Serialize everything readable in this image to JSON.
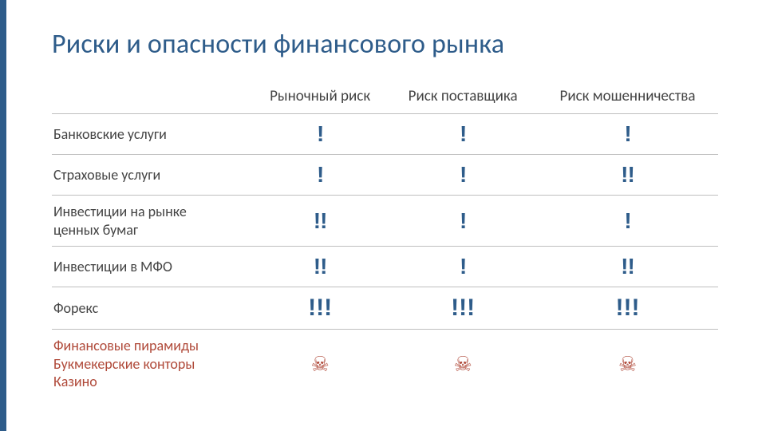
{
  "colors": {
    "accent": "#2e5c8a",
    "text": "#444444",
    "danger": "#b04a3a",
    "border": "#bfbfbf",
    "bg": "#ffffff"
  },
  "title": "Риски и опасности финансового рынка",
  "table": {
    "headers": [
      "",
      "Рыночный риск",
      "Риск поставщика",
      "Риск мошенничества"
    ],
    "rows": [
      {
        "label": "Банковские услуги",
        "marks": [
          "!",
          "!",
          "!"
        ],
        "danger": false
      },
      {
        "label": "Страховые услуги",
        "marks": [
          "!",
          "!",
          "!!"
        ],
        "danger": false
      },
      {
        "label": "Инвестиции на рынке\nценных бумаг",
        "marks": [
          "!!",
          "!",
          "!"
        ],
        "danger": false
      },
      {
        "label": "Инвестиции в МФО",
        "marks": [
          "!!",
          "!",
          "!!"
        ],
        "danger": false
      },
      {
        "label": "Форекс",
        "marks": [
          "!!!",
          "!!!",
          "!!!"
        ],
        "danger": false
      },
      {
        "label": "Финансовые пирамиды\nБукмекерские конторы\nКазино",
        "marks": [
          "☠",
          "☠",
          "☠"
        ],
        "danger": true
      }
    ]
  }
}
